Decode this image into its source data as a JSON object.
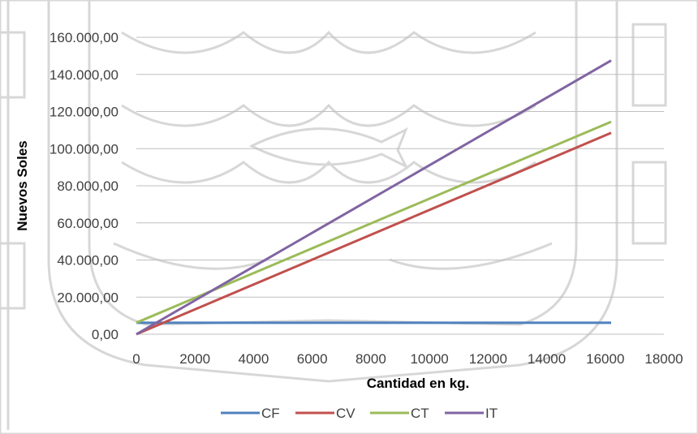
{
  "chart_data": {
    "type": "line",
    "title": "",
    "xlabel": "Cantidad en kg.",
    "ylabel": "Nuevos Soles",
    "xlim": [
      0,
      18000
    ],
    "ylim": [
      0,
      160000
    ],
    "x_ticks": [
      "0",
      "2000",
      "4000",
      "6000",
      "8000",
      "10000",
      "12000",
      "14000",
      "16000",
      "18000"
    ],
    "y_ticks": [
      "0,00",
      "20.000,00",
      "40.000,00",
      "60.000,00",
      "80.000,00",
      "100.000,00",
      "120.000,00",
      "140.000,00",
      "160.000,00"
    ],
    "grid": "horizontal",
    "legend_position": "bottom",
    "series": [
      {
        "name": "CF",
        "color": "#4f81bd",
        "x": [
          0,
          16200
        ],
        "y": [
          6200,
          6200
        ]
      },
      {
        "name": "CV",
        "color": "#c0504d",
        "x": [
          0,
          16200
        ],
        "y": [
          0,
          108500
        ]
      },
      {
        "name": "CT",
        "color": "#9bbb59",
        "x": [
          0,
          16200
        ],
        "y": [
          6200,
          114500
        ]
      },
      {
        "name": "IT",
        "color": "#8064a2",
        "x": [
          0,
          16200
        ],
        "y": [
          0,
          147500
        ]
      }
    ]
  }
}
